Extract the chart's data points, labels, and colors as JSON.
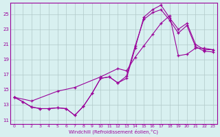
{
  "xlabel": "Windchill (Refroidissement éolien,°C)",
  "background_color": "#d8f0f0",
  "grid_color": "#b0c8c8",
  "line_color": "#990099",
  "xlim": [
    -0.5,
    23.5
  ],
  "ylim": [
    10.5,
    26.5
  ],
  "xticks": [
    0,
    1,
    2,
    3,
    4,
    5,
    6,
    7,
    8,
    9,
    10,
    11,
    12,
    13,
    14,
    15,
    16,
    17,
    18,
    19,
    20,
    21,
    22,
    23
  ],
  "yticks": [
    11,
    13,
    15,
    17,
    19,
    21,
    23,
    25
  ],
  "line1_x": [
    0,
    1,
    2,
    3,
    4,
    5,
    6,
    7,
    8,
    9,
    10,
    11,
    12,
    13,
    14,
    15,
    16,
    17,
    18,
    19,
    20,
    21,
    22,
    23
  ],
  "line1_y": [
    14.0,
    13.4,
    12.7,
    12.5,
    12.5,
    12.6,
    12.5,
    11.6,
    12.8,
    14.5,
    16.5,
    16.7,
    15.9,
    16.5,
    20.5,
    24.6,
    25.6,
    26.2,
    24.5,
    23.0,
    23.8,
    21.0,
    20.3,
    20.3
  ],
  "line2_x": [
    0,
    1,
    2,
    3,
    4,
    5,
    6,
    7,
    8,
    9,
    10,
    11,
    12,
    13,
    14,
    15,
    16,
    17,
    18,
    19,
    20,
    21,
    22,
    23
  ],
  "line2_y": [
    14.0,
    13.4,
    12.7,
    12.5,
    12.5,
    12.6,
    12.5,
    11.6,
    12.8,
    14.5,
    16.5,
    16.7,
    15.9,
    16.8,
    20.8,
    24.3,
    25.2,
    25.6,
    24.2,
    22.5,
    23.5,
    20.7,
    20.1,
    20.0
  ],
  "line3_x": [
    0,
    2,
    5,
    7,
    10,
    12,
    13,
    14,
    15,
    16,
    17,
    18,
    19,
    20,
    21,
    22,
    23
  ],
  "line3_y": [
    14.0,
    13.5,
    14.8,
    15.3,
    16.7,
    17.8,
    17.5,
    19.3,
    20.8,
    22.3,
    23.8,
    24.8,
    19.5,
    19.7,
    20.5,
    20.5,
    20.3
  ]
}
